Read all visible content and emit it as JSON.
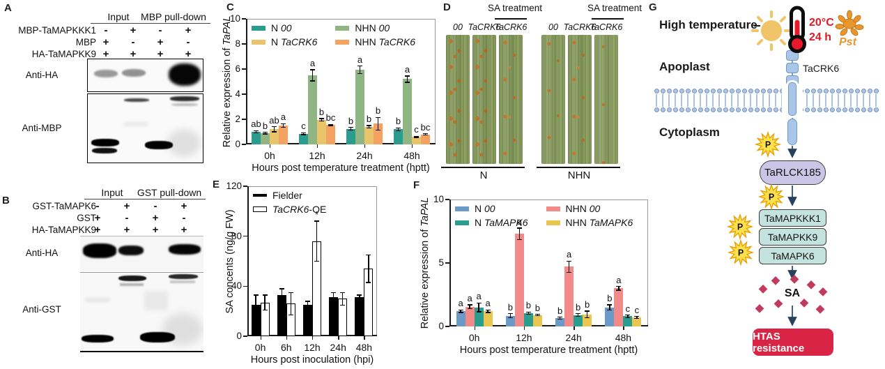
{
  "figure": {
    "background": "#ffffff"
  },
  "panels": {
    "A": {
      "letter": "A",
      "headers": [
        "Input",
        "MBP pull-down"
      ],
      "rows": [
        {
          "label": "MBP-TaMAPKKK1",
          "signs": [
            "-",
            "+",
            "-",
            "+"
          ]
        },
        {
          "label": "MBP",
          "signs": [
            "+",
            "-",
            "+",
            "-"
          ]
        },
        {
          "label": "HA-TaMAPKK9",
          "signs": [
            "+",
            "+",
            "+",
            "+"
          ]
        }
      ],
      "blots": [
        {
          "label": "Anti-HA"
        },
        {
          "label": "Anti-MBP"
        }
      ]
    },
    "B": {
      "letter": "B",
      "headers": [
        "Input",
        "GST pull-down"
      ],
      "rows": [
        {
          "label": "GST-TaMAPK6",
          "signs": [
            "-",
            "+",
            "-",
            "+"
          ]
        },
        {
          "label": "GST",
          "signs": [
            "+",
            "-",
            "+",
            "-"
          ]
        },
        {
          "label": "HA-TaMAPKK9",
          "signs": [
            "+",
            "+",
            "+",
            "+"
          ]
        }
      ],
      "blots": [
        {
          "label": "Anti-HA"
        },
        {
          "label": "Anti-GST"
        }
      ]
    },
    "C": {
      "letter": "C"
    },
    "D": {
      "letter": "D",
      "groups": [
        {
          "sa_label": "SA treatment",
          "lane_labels": [
            "00",
            "TaCRK6",
            "TaCRK6"
          ],
          "caption": "N"
        },
        {
          "sa_label": "SA treatment",
          "lane_labels": [
            "00",
            "TaCRK6",
            "TaCRK6"
          ],
          "caption": "NHN"
        }
      ]
    },
    "E": {
      "letter": "E"
    },
    "F": {
      "letter": "F"
    },
    "G": {
      "letter": "G",
      "high_temperature": "High temperature",
      "temperature": "20°C",
      "duration": "24 h",
      "pathogen": "Pst",
      "apoplast": "Apoplast",
      "cytoplasm": "Cytoplasm",
      "receptor_label": "TaCRK6",
      "rlck_label": "TaRLCK185",
      "kinase_labels": [
        "TaMAPKKK1",
        "TaMAPKK9",
        "TaMAPK6"
      ],
      "phospho_label": "P",
      "sa_label": "SA",
      "outcome_label": "HTAS resistance",
      "colors": {
        "temperature_text": "#e01b24",
        "pathogen_orange": "#e8962e",
        "membrane_blue": "#aec6e4",
        "receptor_fill": "#a9c6e8",
        "rlck_fill": "#cbc5e6",
        "kinase_fill": "#c5e3de",
        "phospho_star": "#ffe14d",
        "sa_diamond": "#c23a5e",
        "outcome_fill": "#da2445",
        "arrow": "#27415f"
      }
    }
  },
  "chart_data": [
    {
      "id": "C",
      "type": "bar",
      "grid": false,
      "legend_position": "top-left",
      "ylabel_parts": [
        [
          "Relative expression of ",
          0
        ],
        [
          "TaPAL",
          1
        ]
      ],
      "xlabel": "Hours post temperature treatment (hptt)",
      "categories": [
        "0h",
        "12h",
        "24h",
        "48h"
      ],
      "ylim": [
        0,
        10
      ],
      "yticks": [
        0,
        2,
        4,
        6,
        8,
        10
      ],
      "legend_cols": [
        [
          0,
          2
        ],
        [
          1,
          3
        ]
      ],
      "series": [
        {
          "name": "N 00",
          "label_parts": [
            [
              "N ",
              0
            ],
            [
              "00",
              1
            ]
          ],
          "color": "#2a9d8f",
          "values": [
            1.0,
            0.85,
            1.25,
            1.2
          ],
          "errors": [
            0.1,
            0.08,
            0.1,
            0.12
          ],
          "letters": [
            "ab",
            "c",
            "b",
            "b"
          ]
        },
        {
          "name": "NHN 00",
          "label_parts": [
            [
              "NHN ",
              0
            ],
            [
              "00",
              1
            ]
          ],
          "color": "#8fb583",
          "values": [
            0.9,
            5.5,
            5.95,
            5.2
          ],
          "errors": [
            0.06,
            0.45,
            0.3,
            0.25
          ],
          "letters": [
            "b",
            "a",
            "a",
            "a"
          ]
        },
        {
          "name": "N TaCRK6",
          "label_parts": [
            [
              "N ",
              0
            ],
            [
              "TaCRK6",
              1
            ]
          ],
          "color": "#e9c46a",
          "values": [
            1.2,
            1.95,
            1.4,
            0.6
          ],
          "errors": [
            0.2,
            0.1,
            0.1,
            0.05
          ],
          "letters": [
            "ab",
            "b",
            "b",
            "c"
          ]
        },
        {
          "name": "NHN TaCRK6",
          "label_parts": [
            [
              "NHN ",
              0
            ],
            [
              "TaCRK6",
              1
            ]
          ],
          "color": "#f4a261",
          "values": [
            1.5,
            1.55,
            1.65,
            0.8
          ],
          "errors": [
            0.15,
            0.05,
            0.5,
            0.06
          ],
          "letters": [
            "a",
            "bc",
            "b",
            "bc"
          ]
        }
      ]
    },
    {
      "id": "E",
      "type": "bar",
      "grid": false,
      "legend_position": "top-left",
      "ylabel_parts": [
        [
          "SA concents (ng/g FW)",
          0
        ]
      ],
      "xlabel": "Hours post inoculation (hpi)",
      "categories": [
        "0h",
        "6h",
        "12h",
        "24h",
        "48h"
      ],
      "ylim": [
        0,
        120
      ],
      "yticks": [
        0,
        40,
        80,
        120
      ],
      "legend_cols": [
        [
          0,
          1
        ]
      ],
      "series": [
        {
          "name": "Fielder",
          "label_parts": [
            [
              "Fielder",
              0
            ]
          ],
          "color": "#000000",
          "values": [
            25,
            33,
            25,
            31,
            31
          ],
          "errors": [
            8,
            5,
            3,
            4,
            2
          ],
          "letters": [
            "",
            "",
            "",
            "",
            ""
          ]
        },
        {
          "name": "TaCRK6-OE",
          "label_parts": [
            [
              "TaCRK6",
              1
            ],
            [
              "-OE",
              0
            ]
          ],
          "color": "#ffffff",
          "values": [
            27,
            26,
            76,
            30,
            54
          ],
          "errors": [
            6,
            9,
            16,
            5,
            11
          ],
          "letters": [
            "",
            "",
            "*",
            "",
            ""
          ]
        }
      ]
    },
    {
      "id": "F",
      "type": "bar",
      "grid": false,
      "legend_position": "top-left",
      "ylabel_parts": [
        [
          "Relative expression of ",
          0
        ],
        [
          "TaPAL",
          1
        ]
      ],
      "xlabel": "Hours post temperature treatment (hptt)",
      "categories": [
        "0h",
        "12h",
        "24h",
        "48h"
      ],
      "ylim": [
        0,
        10
      ],
      "yticks": [
        0,
        5,
        10
      ],
      "legend_cols": [
        [
          0,
          2
        ],
        [
          1,
          3
        ]
      ],
      "series": [
        {
          "name": "N 00",
          "label_parts": [
            [
              "N ",
              0
            ],
            [
              "00",
              1
            ]
          ],
          "color": "#6b9ac7",
          "values": [
            1.2,
            0.85,
            0.65,
            1.5
          ],
          "errors": [
            0.1,
            0.15,
            0.08,
            0.2
          ],
          "letters": [
            "a",
            "b",
            "b",
            "b"
          ]
        },
        {
          "name": "NHN 00",
          "label_parts": [
            [
              "NHN ",
              0
            ],
            [
              "00",
              1
            ]
          ],
          "color": "#f28a8a",
          "values": [
            1.55,
            7.3,
            4.7,
            3.0
          ],
          "errors": [
            0.15,
            0.45,
            0.45,
            0.15
          ],
          "letters": [
            "a",
            "a",
            "a",
            "a"
          ]
        },
        {
          "name": "N TaMAPK6",
          "label_parts": [
            [
              "N ",
              0
            ],
            [
              "TaMAPK6",
              1
            ]
          ],
          "color": "#2a9d8f",
          "values": [
            1.5,
            1.05,
            0.9,
            0.8
          ],
          "errors": [
            0.35,
            0.08,
            0.1,
            0.1
          ],
          "letters": [
            "a",
            "b",
            "b",
            "c"
          ]
        },
        {
          "name": "NHN TaMAPK6",
          "label_parts": [
            [
              "NHN ",
              0
            ],
            [
              "TaMAPK6",
              1
            ]
          ],
          "color": "#eac54f",
          "values": [
            1.2,
            0.9,
            0.95,
            0.7
          ],
          "errors": [
            0.1,
            0.05,
            0.25,
            0.08
          ],
          "letters": [
            "a",
            "b",
            "b",
            "c"
          ]
        }
      ]
    }
  ]
}
